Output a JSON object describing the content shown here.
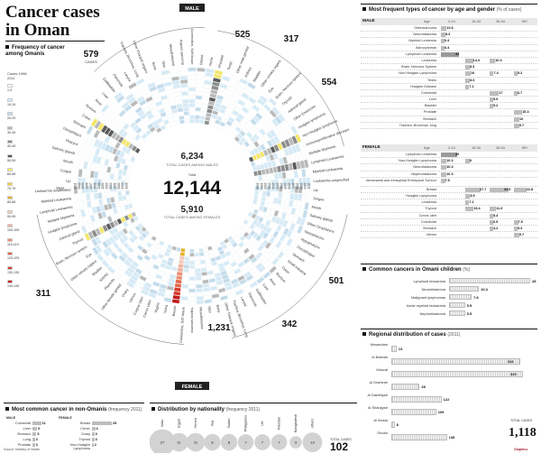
{
  "title": "Cancer cases in Oman",
  "freq_section": {
    "heading": "Frequency of cancer among Omanis",
    "sub": "Cases 1998-2011",
    "legend": [
      {
        "label": "1-9",
        "color": "#ffffff"
      },
      {
        "label": "10-19",
        "color": "#d6ebf6"
      },
      {
        "label": "20-29",
        "color": "#c3dceb"
      },
      {
        "label": "30-39",
        "color": "#b9b9b9"
      },
      {
        "label": "40-49",
        "color": "#8c8c8c"
      },
      {
        "label": "50-59",
        "color": "#5a5a5a"
      },
      {
        "label": "60-69",
        "color": "#f4e86a"
      },
      {
        "label": "70-79",
        "color": "#f2cf3a"
      },
      {
        "label": "80-89",
        "color": "#e6b32a"
      },
      {
        "label": "90-99",
        "color": "#f5c9b8"
      },
      {
        "label": "100-109",
        "color": "#f3b19a"
      },
      {
        "label": "110-119",
        "color": "#ee8d70"
      },
      {
        "label": "120-129",
        "color": "#e6654a"
      },
      {
        "label": "130-139",
        "color": "#d83a2a"
      },
      {
        "label": "140-149",
        "color": "#c31a1a"
      }
    ]
  },
  "radial": {
    "male_label": "MALE",
    "female_label": "FEMALE",
    "males_caption": "TOTAL CASES AMONG MALES",
    "males_total": "6,234",
    "total_label": "Total",
    "total": "12,144",
    "females_caption": "TOTAL CASES AMONG FEMALES",
    "females_total": "5,910",
    "year_label": "Year",
    "years": [
      "2011",
      "2010",
      "2009",
      "2008",
      "2007",
      "2006",
      "2005",
      "2004",
      "2003",
      "2002",
      "2001",
      "2000",
      "1999",
      "1998"
    ],
    "male_cancers": [
      "Lip",
      "Tongue",
      "Mouth",
      "Salivary glands",
      "Pharynx",
      "Oesophagus",
      "Stomach",
      "Colon",
      "Rectum",
      "Anus",
      "Liver",
      "Gallbladder",
      "Pancreas",
      "Larynx",
      "Trachea, Bronchus, Lung",
      "Other Thoracic organs",
      "Bone",
      "Skin",
      "Mesothelioma",
      "Kaposi sarcoma",
      "Connective, Soft tissue",
      "Breast",
      "Penis",
      "Prostate",
      "Testis",
      "Other male genital",
      "Kidney",
      "Bladder",
      "Other urinary organs",
      "Eye",
      "Brain, Nervous system",
      "Thyroid",
      "Adrenal gland",
      "Other Endocrine",
      "Hodgkin lymphoma",
      "Non-Hodgkin lymphoma",
      "Immunoproliferative diseases",
      "Multiple Myeloma",
      "Lymphoid Leukaemia",
      "Myeloid Leukaemia",
      "Leukaemia unspecified"
    ],
    "female_cancers": [
      "Lip",
      "Tongue",
      "Mouth",
      "Salivary glands",
      "Other Oropharynx",
      "Nasopharynx",
      "Hypopharynx",
      "Oesophagus",
      "Stomach",
      "Small intestine",
      "Colon",
      "Rectum",
      "Anus",
      "Liver",
      "Gallbladder",
      "Pancreas",
      "Larynx",
      "Trachea, Bronchus, Lung",
      "Other Thoracic organs",
      "Bone",
      "Skin",
      "Mesothelioma",
      "Kaposi sarcoma",
      "Connective, Soft tissue",
      "Breast",
      "Vulva",
      "Vagina",
      "Cervix Uteri",
      "Corpus Uteri",
      "Uterus",
      "Ovary",
      "Other female genital",
      "Placenta",
      "Kidney",
      "Bladder",
      "Other urinary organs",
      "Eye",
      "Brain, Nervous system",
      "Thyroid",
      "Adrenal gland",
      "Hodgkin lymphoma",
      "Multiple Myeloma",
      "Lymphoid Leukaemia",
      "Myeloid Leukaemia",
      "Leukaemia unspecified"
    ],
    "callouts": [
      "579",
      "525",
      "317",
      "554",
      "501",
      "342",
      "1,231",
      "311"
    ],
    "cases_word": "CASES"
  },
  "mostfreq": {
    "heading": "Most frequent types of cancer by age and gender",
    "unit": "(% of cases)",
    "male": {
      "label": "MALE",
      "age_header": "Age",
      "ages": [
        "0-14",
        "15-34",
        "35-54",
        "55+"
      ],
      "rows": [
        {
          "name": "Osteosarcoma",
          "v": [
            10.6,
            null,
            null,
            null
          ]
        },
        {
          "name": "Neuroblastoma",
          "v": [
            8.3,
            null,
            null,
            null
          ]
        },
        {
          "name": "Myeloid Leukemia",
          "v": [
            6.4,
            null,
            null,
            null
          ]
        },
        {
          "name": "Astrocytomas",
          "v": [
            6.4,
            null,
            null,
            null
          ]
        },
        {
          "name": "Lymphoid Leukemia",
          "v": [
            34,
            null,
            null,
            null
          ]
        },
        {
          "name": "Leukemia",
          "v": [
            null,
            14.3,
            10.3,
            null
          ]
        },
        {
          "name": "Brain, Nervous System",
          "v": [
            null,
            8.3,
            null,
            null
          ]
        },
        {
          "name": "Non Hodgkin Lymphoma",
          "v": [
            null,
            10,
            7.4,
            5.2
          ]
        },
        {
          "name": "Testis",
          "v": [
            null,
            8.6,
            null,
            null
          ]
        },
        {
          "name": "Hodgkin Disease",
          "v": [
            null,
            7.1,
            null,
            null
          ]
        },
        {
          "name": "Colorectal",
          "v": [
            null,
            null,
            17,
            6.7
          ]
        },
        {
          "name": "Liver",
          "v": [
            null,
            null,
            5.9,
            null
          ]
        },
        {
          "name": "Bladder",
          "v": [
            null,
            null,
            5.2,
            null
          ]
        },
        {
          "name": "Prostate",
          "v": [
            null,
            null,
            null,
            15.3
          ]
        },
        {
          "name": "Stomach",
          "v": [
            null,
            null,
            null,
            10
          ]
        },
        {
          "name": "Trachea, Bronchus, lung",
          "v": [
            null,
            null,
            null,
            9.7
          ]
        }
      ]
    },
    "female": {
      "label": "FEMALE",
      "age_header": "Age",
      "ages": [
        "0-14",
        "15-34",
        "35-54",
        "55+"
      ],
      "rows": [
        {
          "name": "Lymphoid Leukemia",
          "v": [
            30,
            null,
            null,
            null
          ]
        },
        {
          "name": "Non-Hodgkin Lymphoma",
          "v": [
            10.3,
            8,
            null,
            null
          ]
        },
        {
          "name": "Neuroblastoma",
          "v": [
            10.3,
            null,
            null,
            null
          ]
        },
        {
          "name": "Nephroblastoma",
          "v": [
            10.3,
            null,
            null,
            null
          ]
        },
        {
          "name": "Intracranial and Intraspinal Embryonal Tumour",
          "v": [
            7.5,
            null,
            null,
            null
          ]
        },
        {
          "name": "Breast",
          "v": [
            null,
            27.7,
            34.9,
            22.8
          ]
        },
        {
          "name": "Hodgkin Lymphoma",
          "v": [
            null,
            8.9,
            null,
            null
          ]
        },
        {
          "name": "Leukemia",
          "v": [
            null,
            7.1,
            null,
            null
          ]
        },
        {
          "name": "Thyroid",
          "v": [
            null,
            15.4,
            11.9,
            null
          ]
        },
        {
          "name": "Cervix uteri",
          "v": [
            null,
            null,
            5.4,
            null
          ]
        },
        {
          "name": "Colorectal",
          "v": [
            null,
            null,
            6.5,
            7.5
          ]
        },
        {
          "name": "Stomach",
          "v": [
            null,
            null,
            4.2,
            5.3
          ]
        },
        {
          "name": "Uterus",
          "v": [
            null,
            null,
            null,
            9.7
          ]
        }
      ]
    }
  },
  "children": {
    "heading": "Common cancers in Omani children",
    "unit": "(%)",
    "rows": [
      {
        "name": "Lymphoid leukaemia",
        "value": 28
      },
      {
        "name": "Neuroblastoma",
        "value": 10.3
      },
      {
        "name": "Malignant lymphomas",
        "value": 7.8
      },
      {
        "name": "Acute myeloid leukaemia",
        "value": 5.5
      },
      {
        "name": "Nephroblastoma",
        "value": 5.5
      }
    ]
  },
  "regional": {
    "heading": "Regional distribution of cases",
    "unit": "(2011)",
    "rows": [
      {
        "name": "Musandam",
        "value": 13
      },
      {
        "name": "Al Batinah",
        "value": 313
      },
      {
        "name": "Muscat",
        "value": 320
      },
      {
        "name": "Al Dhahirah",
        "value": 69
      },
      {
        "name": "Al Dakhiliyah",
        "value": 122
      },
      {
        "name": "Al Sharqiyah",
        "value": 109
      },
      {
        "name": "Al Wusta",
        "value": 8
      },
      {
        "name": "Dhofar",
        "value": 135
      }
    ],
    "total_label": "TOTAL CASES",
    "total": "1,118"
  },
  "nonomani": {
    "heading": "Most common cancer in non-Omanis",
    "unit": "(frequency 2011)",
    "male_label": "MALE",
    "female_label": "FEMALE",
    "male": [
      {
        "name": "Colorectal",
        "value": 11
      },
      {
        "name": "Liver",
        "value": 6
      },
      {
        "name": "Stomach",
        "value": 5
      },
      {
        "name": "Lung",
        "value": 3
      },
      {
        "name": "Prostate",
        "value": 3
      }
    ],
    "female": [
      {
        "name": "Breast",
        "value": 25
      },
      {
        "name": "Cervix",
        "value": 4
      },
      {
        "name": "Ovary",
        "value": 3
      },
      {
        "name": "Thyroid",
        "value": 3
      },
      {
        "name": "Non-Hodgkin Lymphoma",
        "value": 2
      }
    ]
  },
  "nationality": {
    "heading": "Distribution by nationality",
    "unit": "(frequency 2011)",
    "rows": [
      {
        "name": "India",
        "value": 27
      },
      {
        "name": "Egypt",
        "value": 11
      },
      {
        "name": "Yemen",
        "value": 11
      },
      {
        "name": "Iraq",
        "value": 8
      },
      {
        "name": "Sudan",
        "value": 8
      },
      {
        "name": "Philippines",
        "value": 7
      },
      {
        "name": "UK",
        "value": 7
      },
      {
        "name": "Pakistan",
        "value": 7
      },
      {
        "name": "Bangladesh",
        "value": 3
      },
      {
        "name": "others",
        "value": 13
      }
    ],
    "total_label": "TOTAL CASES",
    "total": "102"
  },
  "source": "Source: Ministry of Health",
  "brand": "Graphics",
  "chart_data": [
    {
      "type": "heatmap",
      "title": "Frequency of cancer among Omanis",
      "xlabel": "Year",
      "categories_years": [
        "1998",
        "1999",
        "2000",
        "2001",
        "2002",
        "2003",
        "2004",
        "2005",
        "2006",
        "2007",
        "2008",
        "2009",
        "2010",
        "2011"
      ],
      "totals": {
        "male": 6234,
        "female": 5910,
        "all": 12144
      }
    },
    {
      "type": "bar",
      "title": "Common cancers in Omani children",
      "categories": [
        "Lymphoid leukaemia",
        "Neuroblastoma",
        "Malignant lymphomas",
        "Acute myeloid leukaemia",
        "Nephroblastoma"
      ],
      "values": [
        28,
        10.3,
        7.8,
        5.5,
        5.5
      ]
    },
    {
      "type": "bar",
      "title": "Regional distribution of cases",
      "categories": [
        "Musandam",
        "Al Batinah",
        "Muscat",
        "Al Dhahirah",
        "Al Dakhiliyah",
        "Al Sharqiyah",
        "Al Wusta",
        "Dhofar"
      ],
      "values": [
        13,
        313,
        320,
        69,
        122,
        109,
        8,
        135
      ]
    },
    {
      "type": "scatter",
      "title": "Distribution by nationality",
      "categories": [
        "India",
        "Egypt",
        "Yemen",
        "Iraq",
        "Sudan",
        "Philippines",
        "UK",
        "Pakistan",
        "Bangladesh",
        "others"
      ],
      "values": [
        27,
        11,
        11,
        8,
        8,
        7,
        7,
        7,
        3,
        13
      ]
    }
  ]
}
